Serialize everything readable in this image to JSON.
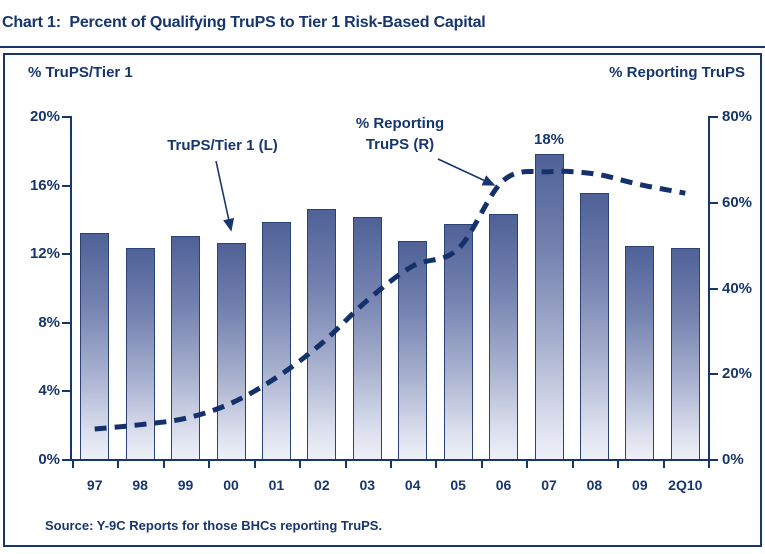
{
  "title": "Chart 1:  Percent of Qualifying TruPS to Tier 1 Risk-Based Capital",
  "left_axis_header": "% TruPS/Tier 1",
  "right_axis_header": "% Reporting TruPS",
  "annotations": {
    "bar_series_label": "TruPS/Tier 1 (L)",
    "line_series_label_line1": "% Reporting",
    "line_series_label_line2": "TruPS (R)",
    "peak_value_label": "18%"
  },
  "source_note": "Source: Y-9C Reports for those BHCs reporting TruPS.",
  "colors": {
    "navy": "#17366E",
    "bar_gradient_top": "#4F6197",
    "bar_gradient_bottom": "#EEF0F7",
    "bar_border": "#2A4377",
    "dashed_line": "#14316B"
  },
  "chart_data": {
    "type": "bar",
    "title": "Chart 1: Percent of Qualifying TruPS to Tier 1 Risk-Based Capital",
    "categories": [
      "97",
      "98",
      "99",
      "00",
      "01",
      "02",
      "03",
      "04",
      "05",
      "06",
      "07",
      "08",
      "09",
      "2Q10"
    ],
    "series": [
      {
        "name": "TruPS/Tier 1 (L)",
        "type": "bar",
        "axis": "left",
        "values": [
          13.2,
          12.3,
          13.0,
          12.6,
          13.8,
          14.6,
          14.1,
          12.7,
          13.7,
          14.3,
          17.8,
          15.5,
          12.4,
          12.3
        ]
      },
      {
        "name": "% Reporting TruPS (R)",
        "type": "line",
        "style": "dashed",
        "axis": "right",
        "values": [
          7,
          8,
          9.5,
          13,
          19,
          27,
          37,
          45,
          49,
          65,
          67,
          66.5,
          64,
          62
        ]
      }
    ],
    "left_axis": {
      "label": "% TruPS/Tier 1",
      "tick_labels": [
        "20%",
        "16%",
        "12%",
        "8%",
        "4%",
        "0%"
      ],
      "min": 0,
      "max": 20
    },
    "right_axis": {
      "label": "% Reporting TruPS",
      "tick_labels": [
        "80%",
        "60%",
        "40%",
        "20%",
        "0%"
      ],
      "min": 0,
      "max": 80
    },
    "data_labels": [
      {
        "category": "07",
        "series": "TruPS/Tier 1 (L)",
        "text": "18%"
      }
    ],
    "grid": false,
    "legend_position": "annotated-arrows",
    "source": "Source: Y-9C Reports for those BHCs reporting TruPS."
  }
}
